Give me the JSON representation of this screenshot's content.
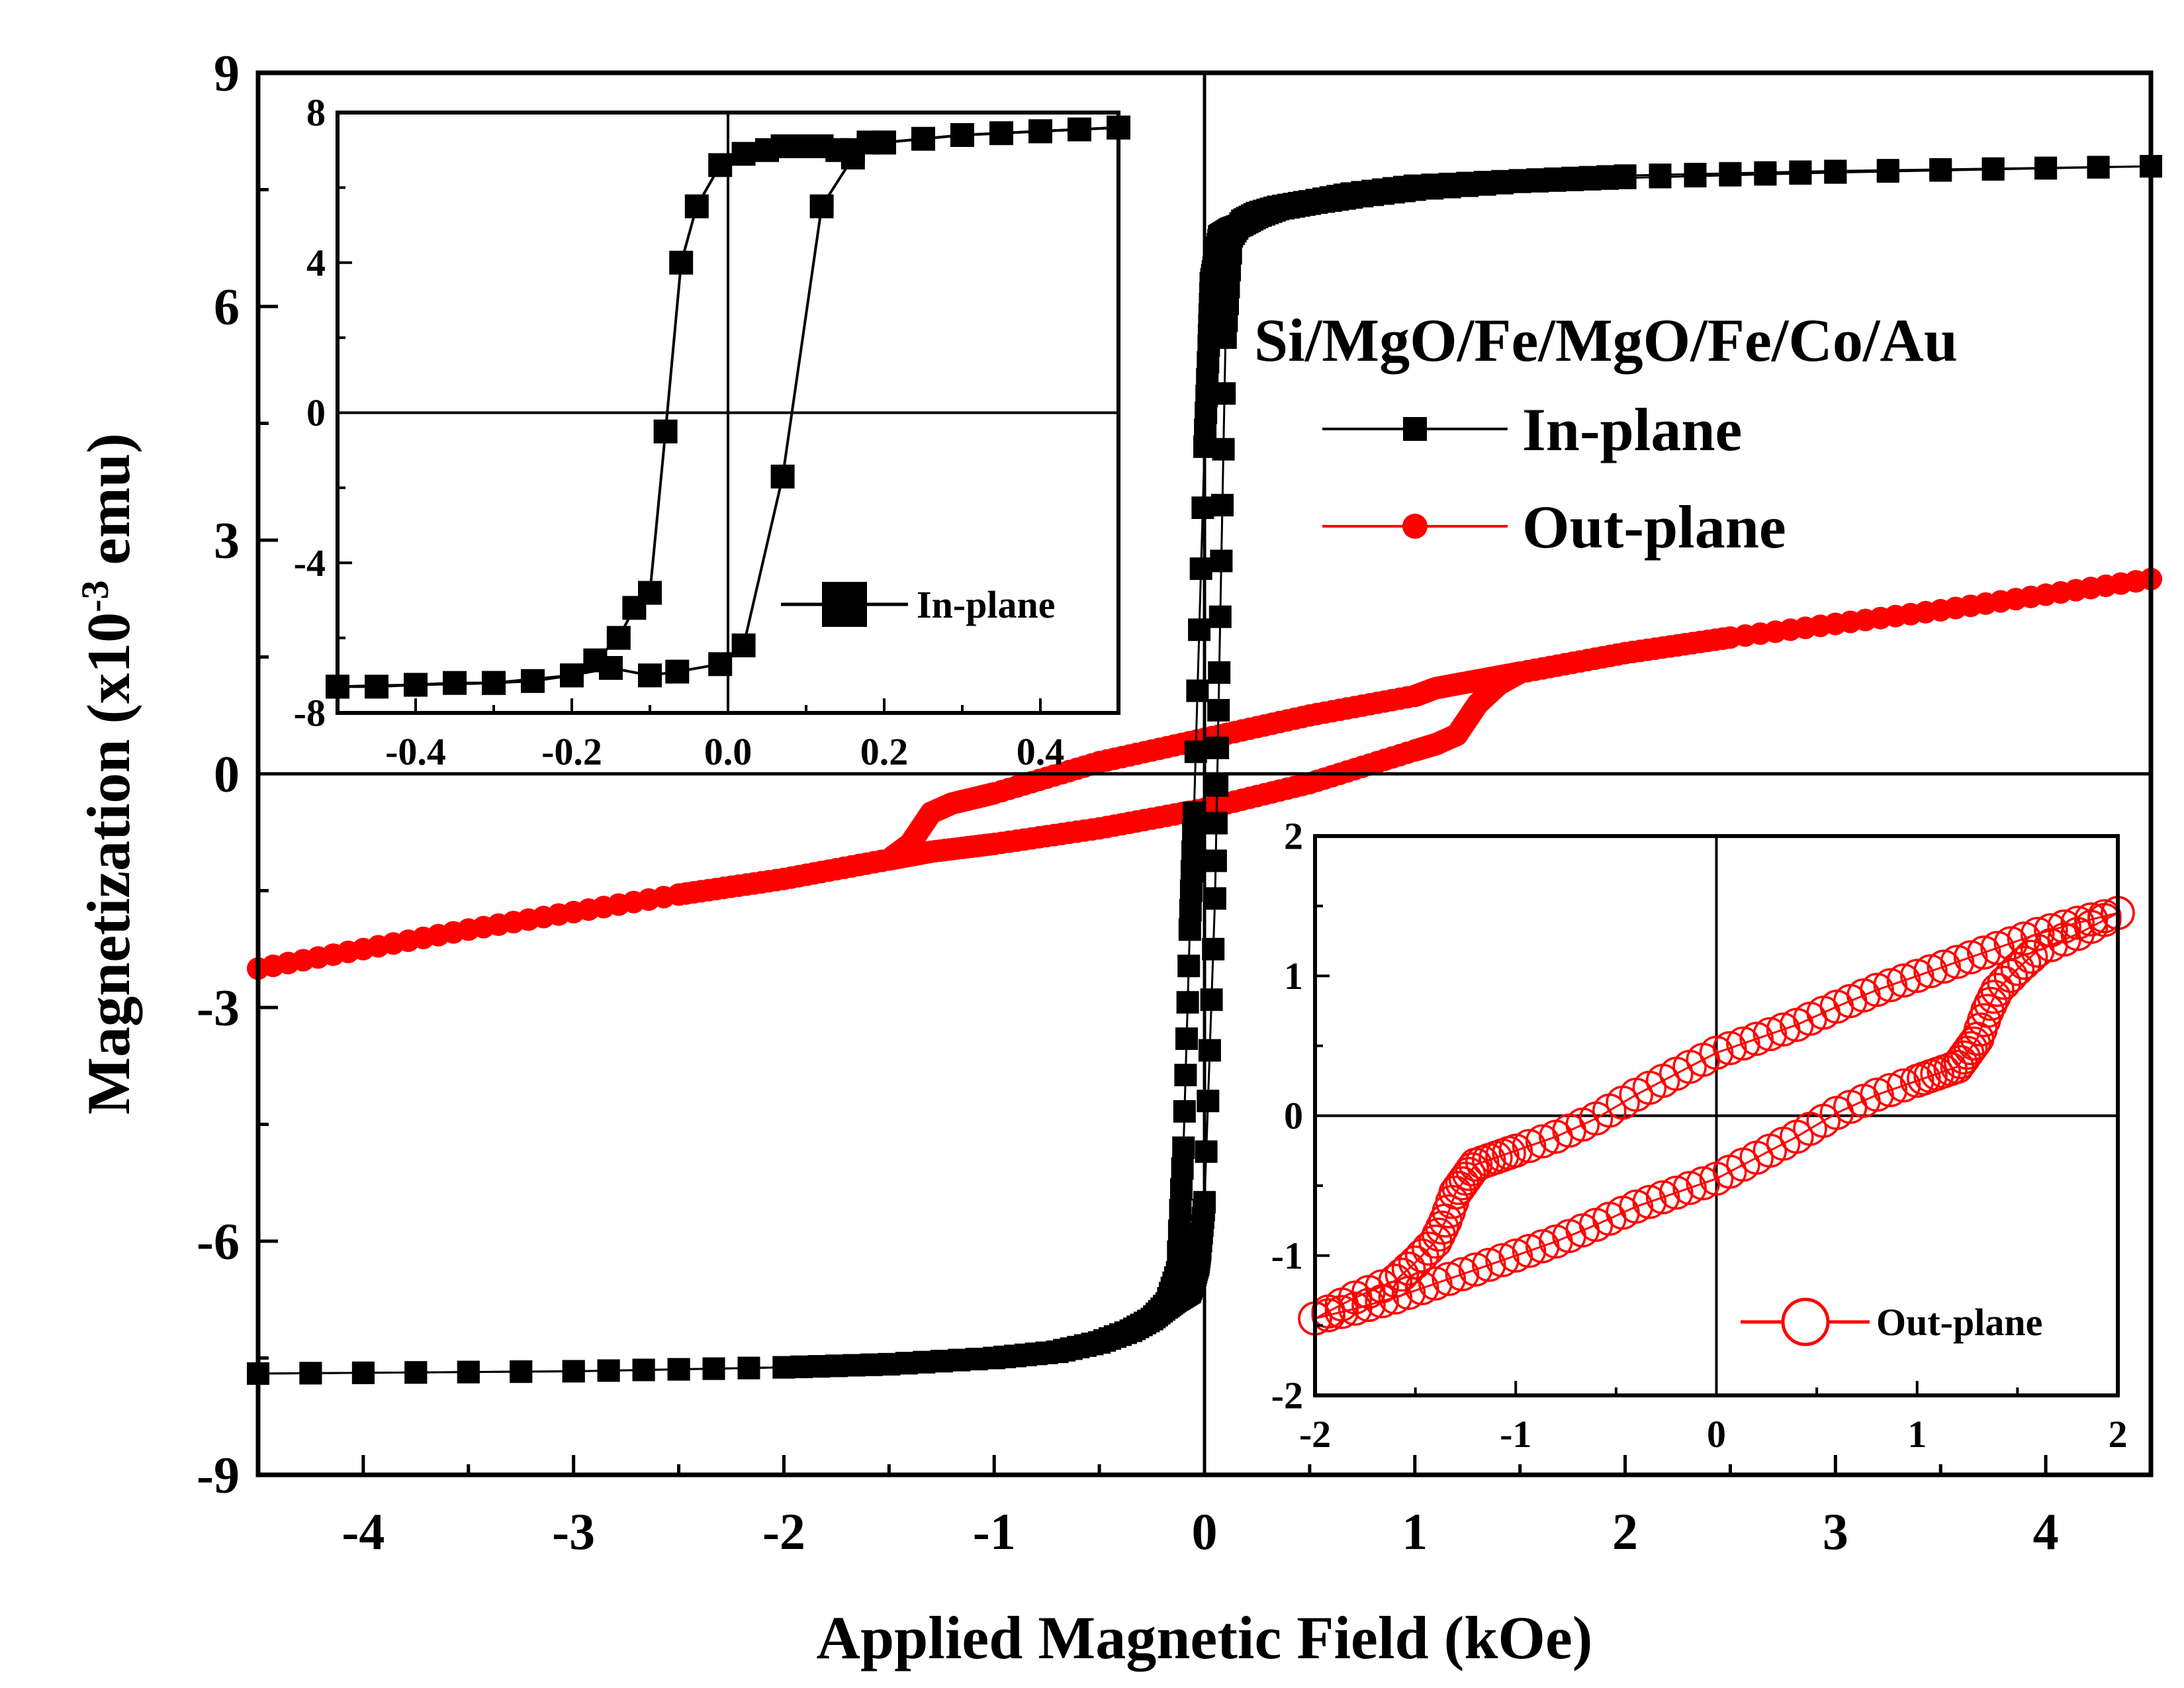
{
  "chart_data": [
    {
      "id": "main",
      "type": "scatter",
      "title": "",
      "xlabel": "Applied Magnetic Field (kOe)",
      "ylabel": "Magnetization (x10",
      "ylabel_exponent": "-3",
      "ylabel_unit": " emu)",
      "xlim": [
        -4.5,
        4.5
      ],
      "ylim": [
        -9,
        9
      ],
      "x_ticks": [
        -4,
        -3,
        -2,
        -1,
        0,
        1,
        2,
        3,
        4
      ],
      "x_tick_labels": [
        "-4",
        "-3",
        "-2",
        "-1",
        "0",
        "1",
        "2",
        "3",
        "4"
      ],
      "y_ticks": [
        -9,
        -6,
        -3,
        0,
        3,
        6,
        9
      ],
      "y_tick_labels": [
        "-9",
        "-6",
        "-3",
        "0",
        "3",
        "6",
        "9"
      ],
      "sample_label": "Si/MgO/Fe/MgO/Fe/Co/Au",
      "legend": [
        "In-plane",
        "Out-plane"
      ],
      "legend_position": "top-right",
      "zero_lines": true,
      "series": [
        {
          "name": "In-plane",
          "color": "#000000",
          "marker": "square",
          "branch_descending": {
            "x": [
              4.5,
              3.0,
              2.0,
              1.5,
              1.0,
              0.7,
              0.5,
              0.35,
              0.25,
              0.18,
              0.13,
              0.1,
              0.07,
              0.05,
              0.03,
              0.02,
              0.0,
              -0.05,
              -0.07,
              -0.1,
              -0.13,
              -0.18,
              -0.25,
              -0.35,
              -0.5,
              -0.7,
              -1.0,
              -1.5,
              -2.0,
              -3.0,
              -4.5
            ],
            "y": [
              7.8,
              7.72,
              7.65,
              7.6,
              7.5,
              7.4,
              7.32,
              7.25,
              7.15,
              7.05,
              7.0,
              6.95,
              6.9,
              6.6,
              6.3,
              5.5,
              4.2,
              -0.5,
              -2.0,
              -4.8,
              -6.4,
              -6.8,
              -7.0,
              -7.15,
              -7.3,
              -7.42,
              -7.5,
              -7.58,
              -7.62,
              -7.67,
              -7.7
            ]
          },
          "branch_ascending": {
            "x": [
              -4.5,
              -3.0,
              -2.0,
              -1.5,
              -1.0,
              -0.7,
              -0.5,
              -0.35,
              -0.25,
              -0.18,
              -0.13,
              -0.1,
              -0.07,
              -0.05,
              -0.03,
              -0.02,
              0.0,
              0.05,
              0.07,
              0.1,
              0.13,
              0.18,
              0.25,
              0.35,
              0.5,
              0.7,
              1.0,
              1.5,
              2.0,
              3.0,
              4.5
            ],
            "y": [
              -7.7,
              -7.67,
              -7.62,
              -7.58,
              -7.5,
              -7.42,
              -7.3,
              -7.15,
              -7.0,
              -6.85,
              -6.75,
              -6.7,
              -6.65,
              -6.5,
              -6.3,
              -6.1,
              -5.5,
              -1.6,
              1.3,
              5.6,
              6.9,
              7.1,
              7.2,
              7.28,
              7.35,
              7.45,
              7.55,
              7.62,
              7.68,
              7.74,
              7.8
            ]
          }
        },
        {
          "name": "Out-plane",
          "color": "#ff0000",
          "marker": "circle",
          "branch_descending": {
            "x": [
              4.5,
              3.5,
              2.5,
              2.0,
              1.5,
              1.3,
              1.2,
              1.1,
              1.0,
              0.5,
              0.0,
              -0.5,
              -1.0,
              -1.2,
              -1.3,
              -1.4,
              -1.5,
              -2.0,
              -2.5,
              -3.5,
              -4.5
            ],
            "y": [
              2.5,
              2.1,
              1.75,
              1.55,
              1.3,
              1.2,
              1.15,
              1.1,
              1.0,
              0.75,
              0.45,
              0.15,
              -0.25,
              -0.38,
              -0.5,
              -0.9,
              -1.1,
              -1.35,
              -1.55,
              -2.0,
              -2.5
            ]
          },
          "branch_ascending": {
            "x": [
              -4.5,
              -3.5,
              -2.5,
              -2.0,
              -1.5,
              -1.3,
              -1.0,
              -0.5,
              0.0,
              0.5,
              1.0,
              1.1,
              1.2,
              1.3,
              1.4,
              1.5,
              2.0,
              2.5,
              3.5,
              4.5
            ],
            "y": [
              -2.5,
              -2.0,
              -1.55,
              -1.35,
              -1.1,
              -1.0,
              -0.9,
              -0.7,
              -0.45,
              -0.12,
              0.3,
              0.38,
              0.5,
              0.9,
              1.15,
              1.3,
              1.55,
              1.75,
              2.1,
              2.5
            ]
          }
        }
      ]
    },
    {
      "id": "inset-in-plane",
      "type": "scatter",
      "title": "",
      "xlabel": "",
      "ylabel": "",
      "xlim": [
        -0.5,
        0.5
      ],
      "ylim": [
        -8,
        8
      ],
      "x_ticks": [
        -0.4,
        -0.2,
        0.0,
        0.2,
        0.4
      ],
      "x_tick_labels": [
        "-0.4",
        "-0.2",
        "0.0",
        "0.2",
        "0.4"
      ],
      "y_ticks": [
        -8,
        -4,
        0,
        4,
        8
      ],
      "y_tick_labels": [
        "-8",
        "-4",
        "0",
        "4",
        "8"
      ],
      "legend": [
        "In-plane"
      ],
      "legend_position": "bottom-right",
      "zero_lines": true,
      "series": [
        {
          "name": "In-plane",
          "color": "#000000",
          "marker": "square",
          "branch_descending": {
            "x": [
              0.5,
              0.45,
              0.4,
              0.35,
              0.3,
              0.25,
              0.2,
              0.15,
              0.1,
              0.05,
              0.0,
              -0.05,
              -0.1,
              -0.15,
              -0.2,
              -0.25,
              -0.3,
              -0.35,
              -0.4,
              -0.45,
              -0.5
            ],
            "y": [
              7.6,
              7.55,
              7.5,
              7.45,
              7.4,
              7.3,
              7.2,
              7.1,
              6.9,
              6.7,
              6.5,
              4.0,
              -4.8,
              -6.4,
              -6.8,
              -7.0,
              -7.1,
              -7.2,
              -7.3,
              -7.3,
              -7.35
            ],
            "marker_x": [
              -0.5,
              -0.45,
              -0.4,
              -0.35,
              -0.3,
              -0.25,
              -0.2,
              -0.15,
              -0.1,
              -0.065,
              -0.01,
              0.02,
              0.07,
              0.12,
              0.16,
              0.18,
              0.2,
              0.25,
              0.3,
              0.35,
              0.4,
              0.45,
              0.5
            ],
            "marker_y": [
              -7.3,
              -7.3,
              -7.25,
              -7.2,
              -7.2,
              -7.15,
              -7.0,
              -6.8,
              -7.0,
              -6.9,
              -6.7,
              -6.2,
              -1.7,
              5.5,
              6.8,
              7.2,
              7.2,
              7.3,
              7.4,
              7.45,
              7.5,
              7.55,
              7.6
            ]
          },
          "branch_ascending": {
            "x": [
              -0.5,
              -0.4,
              -0.3,
              -0.2,
              -0.17,
              -0.14,
              -0.12,
              -0.1,
              -0.08,
              -0.06,
              -0.04,
              -0.01,
              0.02,
              0.05,
              0.07,
              0.1,
              0.12,
              0.14,
              0.16,
              0.2,
              0.3,
              0.4,
              0.5
            ],
            "y": [
              -7.3,
              -7.25,
              -7.2,
              -7.0,
              -6.6,
              -6.0,
              -5.2,
              -4.8,
              -0.5,
              4.0,
              5.5,
              6.6,
              6.9,
              7.0,
              7.1,
              7.1,
              7.1,
              7.0,
              7.0,
              7.2,
              7.4,
              7.5,
              7.6
            ]
          }
        }
      ]
    },
    {
      "id": "inset-out-plane",
      "type": "scatter",
      "title": "",
      "xlabel": "",
      "ylabel": "",
      "xlim": [
        -2,
        2
      ],
      "ylim": [
        -2,
        2
      ],
      "x_ticks": [
        -2,
        -1,
        0,
        1,
        2
      ],
      "x_tick_labels": [
        "-2",
        "-1",
        "0",
        "1",
        "2"
      ],
      "y_ticks": [
        -2,
        -1,
        0,
        1,
        2
      ],
      "y_tick_labels": [
        "-2",
        "-1",
        "0",
        "1",
        "2"
      ],
      "legend": [
        "Out-plane"
      ],
      "legend_position": "bottom-right",
      "zero_lines": true,
      "series": [
        {
          "name": "Out-plane",
          "color": "#ff0000",
          "marker": "open-circle",
          "branch_descending": {
            "x": [
              2.0,
              1.8,
              1.6,
              1.4,
              1.2,
              1.0,
              0.8,
              0.6,
              0.4,
              0.2,
              0.0,
              -0.2,
              -0.4,
              -0.6,
              -0.8,
              -1.0,
              -1.1,
              -1.2,
              -1.25,
              -1.3,
              -1.35,
              -1.4,
              -1.5,
              -1.6,
              -1.8,
              -2.0
            ],
            "y": [
              1.45,
              1.38,
              1.3,
              1.2,
              1.1,
              1.0,
              0.9,
              0.78,
              0.65,
              0.55,
              0.45,
              0.3,
              0.15,
              -0.02,
              -0.15,
              -0.25,
              -0.3,
              -0.35,
              -0.45,
              -0.55,
              -0.75,
              -0.9,
              -1.05,
              -1.18,
              -1.3,
              -1.45
            ]
          },
          "branch_ascending": {
            "x": [
              -2.0,
              -1.8,
              -1.6,
              -1.4,
              -1.2,
              -1.0,
              -0.8,
              -0.6,
              -0.4,
              -0.2,
              0.0,
              0.2,
              0.4,
              0.6,
              0.8,
              1.0,
              1.1,
              1.2,
              1.25,
              1.3,
              1.35,
              1.4,
              1.5,
              1.6,
              1.8,
              2.0
            ],
            "y": [
              -1.45,
              -1.38,
              -1.3,
              -1.2,
              -1.1,
              -1.0,
              -0.9,
              -0.78,
              -0.65,
              -0.55,
              -0.45,
              -0.3,
              -0.15,
              0.02,
              0.15,
              0.25,
              0.3,
              0.35,
              0.45,
              0.55,
              0.75,
              0.9,
              1.05,
              1.18,
              1.3,
              1.45
            ]
          }
        }
      ]
    }
  ]
}
